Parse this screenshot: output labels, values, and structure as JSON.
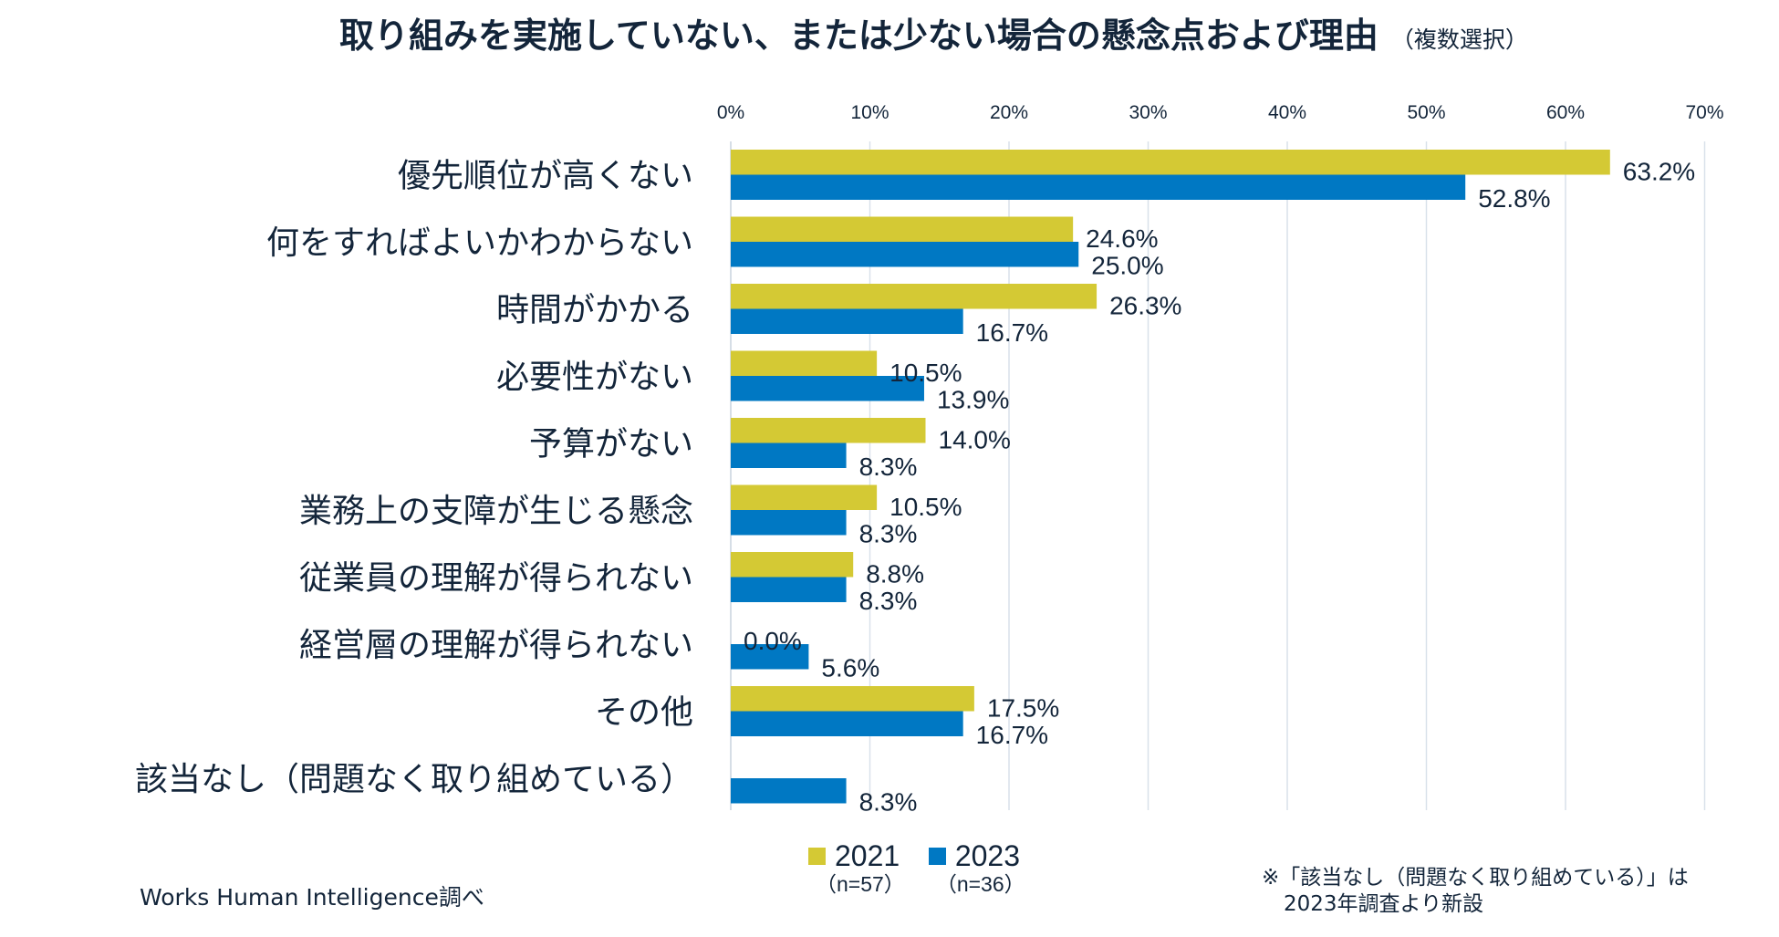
{
  "header": {
    "title": "取り組みを実施していない、または少ない場合の懸念点および理由",
    "subtitle": "（複数選択）"
  },
  "chart_data": {
    "type": "bar",
    "orientation": "horizontal",
    "title": "取り組みを実施していない、または少ない場合の懸念点および理由（複数選択）",
    "xlabel": "",
    "ylabel": "",
    "xlim": [
      0,
      70
    ],
    "x_ticks": [
      0,
      10,
      20,
      30,
      40,
      50,
      60,
      70
    ],
    "x_tick_labels": [
      "0%",
      "10%",
      "20%",
      "30%",
      "40%",
      "50%",
      "60%",
      "70%"
    ],
    "grid": "vertical",
    "legend_position": "bottom",
    "categories": [
      "優先順位が高くない",
      "何をすればよいかわからない",
      "時間がかかる",
      "必要性がない",
      "予算がない",
      "業務上の支障が生じる懸念",
      "従業員の理解が得られない",
      "経営層の理解が得られない",
      "その他",
      "該当なし（問題なく取り組めている）"
    ],
    "series": [
      {
        "name": "2021",
        "n_label": "（n=57）",
        "color": "#d4c934",
        "values": [
          63.2,
          24.6,
          26.3,
          10.5,
          14.0,
          10.5,
          8.8,
          0.0,
          17.5,
          null
        ],
        "labels": [
          "63.2%",
          "24.6%",
          "26.3%",
          "10.5%",
          "14.0%",
          "10.5%",
          "8.8%",
          "0.0%",
          "17.5%",
          null
        ]
      },
      {
        "name": "2023",
        "n_label": "（n=36）",
        "color": "#0078c3",
        "values": [
          52.8,
          25.0,
          16.7,
          13.9,
          8.3,
          8.3,
          8.3,
          5.6,
          16.7,
          8.3
        ],
        "labels": [
          "52.8%",
          "25.0%",
          "16.7%",
          "13.9%",
          "8.3%",
          "8.3%",
          "8.3%",
          "5.6%",
          "16.7%",
          "8.3%"
        ]
      }
    ]
  },
  "footer": {
    "source": "Works Human Intelligence調べ",
    "note_line1": "※「該当なし（問題なく取り組めている）」は",
    "note_line2": "2023年調査より新設"
  }
}
